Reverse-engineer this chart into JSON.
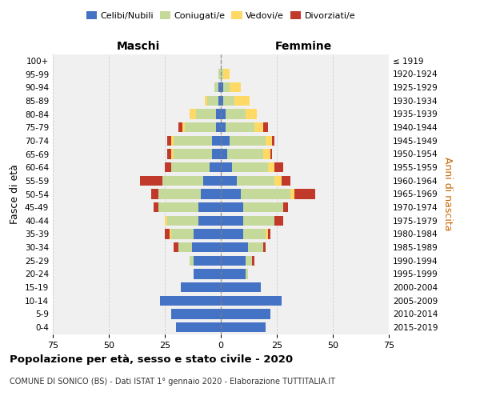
{
  "age_groups": [
    "0-4",
    "5-9",
    "10-14",
    "15-19",
    "20-24",
    "25-29",
    "30-34",
    "35-39",
    "40-44",
    "45-49",
    "50-54",
    "55-59",
    "60-64",
    "65-69",
    "70-74",
    "75-79",
    "80-84",
    "85-89",
    "90-94",
    "95-99",
    "100+"
  ],
  "birth_years": [
    "2015-2019",
    "2010-2014",
    "2005-2009",
    "2000-2004",
    "1995-1999",
    "1990-1994",
    "1985-1989",
    "1980-1984",
    "1975-1979",
    "1970-1974",
    "1965-1969",
    "1960-1964",
    "1955-1959",
    "1950-1954",
    "1945-1949",
    "1940-1944",
    "1935-1939",
    "1930-1934",
    "1925-1929",
    "1920-1924",
    "≤ 1919"
  ],
  "male": {
    "celibi": [
      20,
      22,
      27,
      18,
      12,
      12,
      13,
      12,
      10,
      10,
      9,
      8,
      5,
      4,
      4,
      2,
      2,
      1,
      1,
      0,
      0
    ],
    "coniugati": [
      0,
      0,
      0,
      0,
      0,
      2,
      6,
      10,
      14,
      18,
      19,
      18,
      17,
      17,
      17,
      14,
      9,
      5,
      2,
      1,
      0
    ],
    "vedovi": [
      0,
      0,
      0,
      0,
      0,
      0,
      0,
      1,
      1,
      0,
      0,
      0,
      0,
      1,
      1,
      1,
      3,
      1,
      0,
      0,
      0
    ],
    "divorziati": [
      0,
      0,
      0,
      0,
      0,
      0,
      2,
      2,
      0,
      2,
      3,
      10,
      3,
      2,
      2,
      2,
      0,
      0,
      0,
      0,
      0
    ]
  },
  "female": {
    "nubili": [
      20,
      22,
      27,
      18,
      11,
      11,
      12,
      10,
      10,
      10,
      9,
      7,
      5,
      3,
      4,
      2,
      2,
      1,
      1,
      0,
      0
    ],
    "coniugate": [
      0,
      0,
      0,
      0,
      1,
      3,
      7,
      10,
      14,
      18,
      22,
      17,
      16,
      16,
      16,
      13,
      9,
      5,
      3,
      1,
      0
    ],
    "vedove": [
      0,
      0,
      0,
      0,
      0,
      0,
      0,
      1,
      0,
      0,
      2,
      3,
      3,
      3,
      3,
      4,
      5,
      7,
      5,
      3,
      0
    ],
    "divorziate": [
      0,
      0,
      0,
      0,
      0,
      1,
      1,
      1,
      4,
      2,
      9,
      4,
      4,
      1,
      1,
      2,
      0,
      0,
      0,
      0,
      0
    ]
  },
  "colors": {
    "celibi": "#4472c4",
    "coniugati": "#c5d99b",
    "vedovi": "#ffd966",
    "divorziati": "#c0392b"
  },
  "xlim": 75,
  "title": "Popolazione per età, sesso e stato civile - 2020",
  "subtitle": "COMUNE DI SONICO (BS) - Dati ISTAT 1° gennaio 2020 - Elaborazione TUTTITALIA.IT",
  "ylabel_left": "Fasce di età",
  "ylabel_right": "Anni di nascita",
  "xlabel_left": "Maschi",
  "xlabel_right": "Femmine",
  "bg_color": "#f0f0f0",
  "grid_color": "#cccccc"
}
